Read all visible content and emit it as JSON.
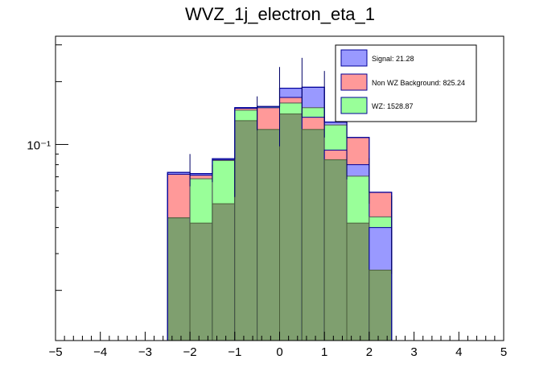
{
  "chart_data": {
    "type": "bar",
    "title": "WVZ_1j_electron_eta_1",
    "xlabel": "",
    "ylabel": "",
    "xlim": [
      -5,
      5
    ],
    "ylim": [
      0.0115,
      0.33
    ],
    "ylog": true,
    "x_ticks": [
      "−5",
      "−4",
      "−3",
      "−2",
      "−1",
      "0",
      "1",
      "2",
      "3",
      "4",
      "5"
    ],
    "y_tick_label": "10⁻¹",
    "y_tick_value": 0.1,
    "bin_edges": [
      -2.5,
      -2.0,
      -1.5,
      -1.0,
      -0.5,
      0.0,
      0.5,
      1.0,
      1.5,
      2.0,
      2.5
    ],
    "colors": {
      "signal_fill": "#9999ff",
      "nonwz_fill": "#ff9999",
      "wz_fill": "#99ff99",
      "overlap_fill": "#7f9f6f",
      "stack_edge": "#000099",
      "error_bar": "#000066"
    },
    "series": [
      {
        "name": "Signal: 21.28",
        "color": "#9999ff",
        "values": [
          0.0735,
          0.0725,
          0.0855,
          0.15,
          0.152,
          0.186,
          0.188,
          0.128,
          0.08,
          0.04
        ]
      },
      {
        "name": "Non WZ Background: 825.24",
        "color": "#ff9999",
        "values": [
          0.072,
          0.0712,
          0.0845,
          0.149,
          0.15,
          0.168,
          0.135,
          0.094,
          0.108,
          0.059
        ]
      },
      {
        "name": "WZ: 1528.87",
        "color": "#99ff99",
        "values": [
          0.0445,
          0.0685,
          0.0838,
          0.146,
          0.152,
          0.158,
          0.15,
          0.124,
          0.0705,
          0.045
        ]
      }
    ],
    "overlap_values": [
      0.0445,
      0.042,
      0.052,
      0.13,
      0.118,
      0.14,
      0.118,
      0.0845,
      0.042,
      0.025
    ],
    "signal_errors": [
      {
        "x": -2.0,
        "y": 0.072,
        "lo": 0.063,
        "hi": 0.09
      },
      {
        "x": -1.5,
        "y": 0.072,
        "lo": 0.066,
        "hi": 0.08
      },
      {
        "x": -1.0,
        "y": 0.07,
        "lo": 0.056,
        "hi": 0.086
      },
      {
        "x": -0.5,
        "y": 0.14,
        "lo": 0.117,
        "hi": 0.17
      },
      {
        "x": 0.0,
        "y": 0.152,
        "lo": 0.098,
        "hi": 0.235
      },
      {
        "x": 0.5,
        "y": 0.185,
        "lo": 0.135,
        "hi": 0.26
      },
      {
        "x": 1.0,
        "y": 0.147,
        "lo": 0.108,
        "hi": 0.225
      },
      {
        "x": 1.5,
        "y": 0.097,
        "lo": 0.068,
        "hi": 0.14
      },
      {
        "x": 2.0,
        "y": 0.066,
        "lo": 0.052,
        "hi": 0.086
      },
      {
        "x": 2.5,
        "y": 0.04,
        "lo": 0.024,
        "hi": 0.057
      }
    ],
    "legend_position": "top-right",
    "grid": false
  }
}
